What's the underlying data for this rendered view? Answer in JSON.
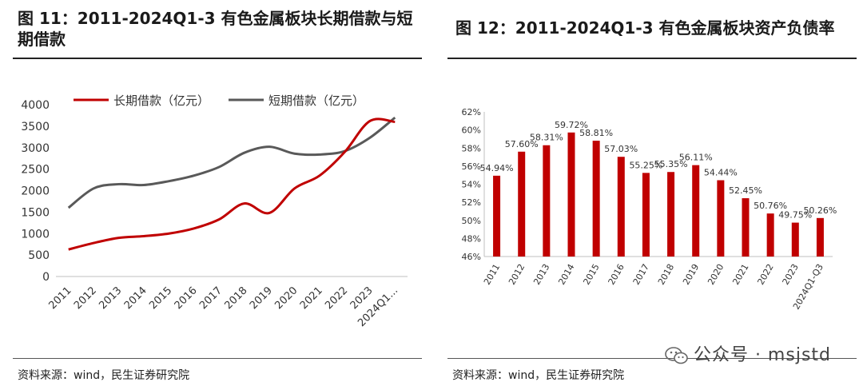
{
  "left": {
    "title": "图 11：2011-2024Q1-3 有色金属板块长期借款与短期借款",
    "source": "资料来源：wind，民生证券研究院"
  },
  "right": {
    "title": "图 12：2011-2024Q1-3 有色金属板块资产负债率",
    "source": "资料来源：wind，民生证券研究院"
  },
  "watermark": "公众号 · msjstd",
  "colors": {
    "red": "#c00000",
    "gray": "#595959"
  },
  "chart_data": [
    {
      "type": "line",
      "categories": [
        "2011",
        "2012",
        "2013",
        "2014",
        "2015",
        "2016",
        "2017",
        "2018",
        "2019",
        "2020",
        "2021",
        "2022",
        "2023",
        "2024Q1..."
      ],
      "series": [
        {
          "name": "长期借款（亿元）",
          "values": [
            630,
            780,
            900,
            940,
            1000,
            1120,
            1330,
            1700,
            1480,
            2050,
            2350,
            2900,
            3620,
            3600
          ]
        },
        {
          "name": "短期借款（亿元）",
          "values": [
            1600,
            2050,
            2150,
            2130,
            2220,
            2350,
            2550,
            2880,
            3020,
            2860,
            2840,
            2920,
            3230,
            3700
          ]
        }
      ],
      "yticks": [
        "0",
        "500",
        "1000",
        "1500",
        "2000",
        "2500",
        "3000",
        "3500",
        "4000"
      ],
      "ylim": [
        0,
        4000
      ],
      "legend": "top-left"
    },
    {
      "type": "bar",
      "categories": [
        "2011",
        "2012",
        "2013",
        "2014",
        "2015",
        "2016",
        "2017",
        "2018",
        "2019",
        "2020",
        "2021",
        "2022",
        "2023",
        "2024Q1-Q3"
      ],
      "values": [
        54.94,
        57.6,
        58.31,
        59.72,
        58.81,
        57.03,
        55.25,
        55.35,
        56.11,
        54.44,
        52.45,
        50.76,
        49.75,
        50.26
      ],
      "labels": [
        "54.94%",
        "57.60%",
        "58.31%",
        "59.72%",
        "58.81%",
        "57.03%",
        "55.25%",
        "55.35%",
        "56.11%",
        "54.44%",
        "52.45%",
        "50.76%",
        "49.75%",
        "50.26%"
      ],
      "yticks": [
        "46%",
        "48%",
        "50%",
        "52%",
        "54%",
        "56%",
        "58%",
        "60%",
        "62%"
      ],
      "ylim": [
        46,
        62
      ]
    }
  ]
}
